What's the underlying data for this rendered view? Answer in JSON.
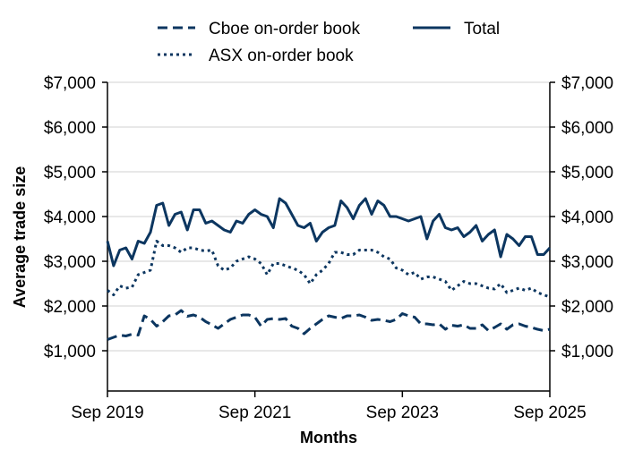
{
  "chart_data": {
    "type": "line",
    "title": "",
    "xlabel": "Months",
    "ylabel": "Average trade size",
    "x_tick_labels": [
      "Sep 2019",
      "Sep 2021",
      "Sep 2023",
      "Sep 2025"
    ],
    "x_tick_months": [
      0,
      24,
      48,
      72
    ],
    "y_tick_labels": [
      "$1,000",
      "$2,000",
      "$3,000",
      "$4,000",
      "$5,000",
      "$6,000",
      "$7,000"
    ],
    "y_tick_values": [
      1000,
      2000,
      3000,
      4000,
      5000,
      6000,
      7000
    ],
    "ylim": [
      100,
      7000
    ],
    "xlim": [
      0,
      72
    ],
    "grid": true,
    "legend_position": "top",
    "color": "#0c3660",
    "series": [
      {
        "name": "Cboe on-order book",
        "style": "dashed",
        "values": [
          1250,
          1300,
          1350,
          1330,
          1370,
          1350,
          1780,
          1700,
          1550,
          1650,
          1780,
          1800,
          1900,
          1770,
          1800,
          1750,
          1650,
          1580,
          1500,
          1600,
          1700,
          1750,
          1800,
          1800,
          1750,
          1550,
          1700,
          1720,
          1700,
          1720,
          1550,
          1500,
          1380,
          1500,
          1600,
          1700,
          1780,
          1750,
          1720,
          1780,
          1780,
          1800,
          1750,
          1680,
          1700,
          1680,
          1650,
          1700,
          1830,
          1780,
          1750,
          1600,
          1600,
          1580,
          1600,
          1480,
          1570,
          1550,
          1580,
          1500,
          1500,
          1580,
          1450,
          1520,
          1600,
          1480,
          1580,
          1600,
          1550,
          1520,
          1480,
          1450,
          1480
        ]
      },
      {
        "name": "ASX on-order book",
        "style": "dotted",
        "values": [
          2350,
          2250,
          2450,
          2400,
          2420,
          2700,
          2750,
          2800,
          3450,
          3350,
          3350,
          3300,
          3200,
          3300,
          3300,
          3250,
          3230,
          3250,
          2900,
          2800,
          2850,
          3000,
          3050,
          3100,
          3050,
          2950,
          2700,
          2950,
          2950,
          2900,
          2850,
          2800,
          2700,
          2500,
          2700,
          2800,
          2950,
          3200,
          3200,
          3150,
          3150,
          3250,
          3250,
          3250,
          3200,
          3100,
          3050,
          2850,
          2800,
          2700,
          2750,
          2600,
          2650,
          2650,
          2600,
          2550,
          2350,
          2450,
          2550,
          2500,
          2500,
          2450,
          2400,
          2380,
          2500,
          2300,
          2350,
          2400,
          2350,
          2400,
          2300,
          2250,
          2200
        ]
      },
      {
        "name": "Total",
        "style": "solid",
        "values": [
          3450,
          2900,
          3250,
          3300,
          3050,
          3450,
          3400,
          3650,
          4250,
          4300,
          3800,
          4050,
          4100,
          3700,
          4150,
          4150,
          3850,
          3900,
          3800,
          3700,
          3650,
          3900,
          3850,
          4050,
          4150,
          4050,
          4000,
          3750,
          4400,
          4300,
          4050,
          3800,
          3750,
          3850,
          3450,
          3650,
          3750,
          3800,
          4350,
          4200,
          3950,
          4250,
          4400,
          4050,
          4350,
          4250,
          4000,
          4000,
          3950,
          3900,
          3950,
          4000,
          3500,
          3900,
          4050,
          3750,
          3700,
          3750,
          3550,
          3650,
          3800,
          3450,
          3600,
          3700,
          3100,
          3600,
          3500,
          3350,
          3550,
          3550,
          3150,
          3150,
          3300
        ]
      }
    ]
  }
}
